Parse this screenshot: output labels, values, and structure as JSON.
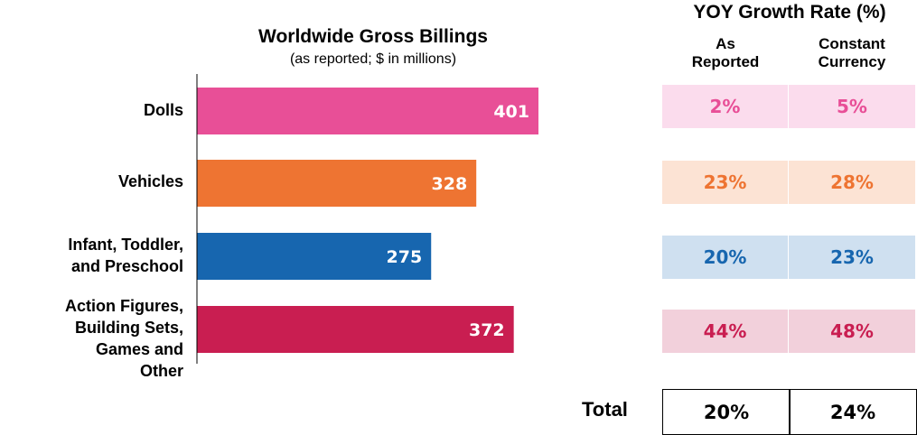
{
  "chart_data": {
    "type": "bar",
    "orientation": "horizontal",
    "title": "Worldwide Gross Billings",
    "subtitle": "(as reported; $ in millions)",
    "categories": [
      [
        "Dolls"
      ],
      [
        "Vehicles"
      ],
      [
        "Infant, Toddler,",
        "and Preschool"
      ],
      [
        "Action Figures,",
        "Building Sets,",
        "Games and",
        "Other"
      ]
    ],
    "values": [
      401,
      328,
      275,
      372
    ],
    "value_labels": [
      "401",
      "328",
      "275",
      "372"
    ],
    "colors": [
      "#e84f97",
      "#ee7432",
      "#1766af",
      "#c91e51"
    ],
    "xlim": [
      0,
      401
    ],
    "grid": false
  },
  "yoy": {
    "title": "YOY Growth Rate (%)",
    "columns": [
      [
        "As",
        "Reported"
      ],
      [
        "Constant",
        "Currency"
      ]
    ],
    "rows": [
      {
        "as_reported": "2%",
        "constant_currency": "5%",
        "text_color": "#e84f97",
        "bg_color": "#fbdced"
      },
      {
        "as_reported": "23%",
        "constant_currency": "28%",
        "text_color": "#ee7432",
        "bg_color": "#fce3d4"
      },
      {
        "as_reported": "20%",
        "constant_currency": "23%",
        "text_color": "#1766af",
        "bg_color": "#cfe0f0"
      },
      {
        "as_reported": "44%",
        "constant_currency": "48%",
        "text_color": "#c91e51",
        "bg_color": "#f2d0db"
      }
    ],
    "total_label": "Total",
    "total_as_reported": "20%",
    "total_constant_currency": "24%"
  }
}
